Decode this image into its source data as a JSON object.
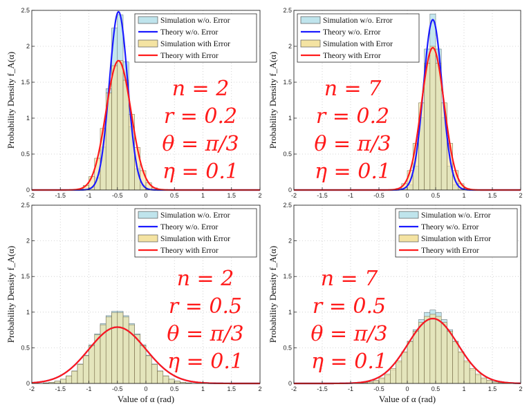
{
  "chart_data": [
    {
      "type": "bar",
      "title": "",
      "xlabel": "",
      "ylabel": "Probability Density f_A(α)",
      "xlim": [
        -2,
        2
      ],
      "ylim": [
        0,
        2.5
      ],
      "xticks": [
        "-2",
        "-1.5",
        "-1",
        "-0.5",
        "0",
        "0.5",
        "1",
        "1.5",
        "2"
      ],
      "yticks": [
        "0",
        "0.5",
        "1",
        "1.5",
        "2",
        "2.5"
      ],
      "grid": true,
      "legend_position": "top-right",
      "params": [
        "n = 2",
        "r = 0.2",
        "θ = π/3",
        "η = 0.1"
      ],
      "series": [
        {
          "name": "Simulation w/o. Error",
          "kind": "histogram",
          "mean": -0.48,
          "peak": 2.48,
          "sigma": 0.16,
          "color": "#bfe4ec"
        },
        {
          "name": "Theory w/o. Error",
          "kind": "curve",
          "mean": -0.48,
          "peak": 2.48,
          "sigma": 0.16,
          "color": "#1a1aff"
        },
        {
          "name": "Simulation with Error",
          "kind": "histogram",
          "mean": -0.48,
          "peak": 1.82,
          "sigma": 0.22,
          "color": "#f4e3a2"
        },
        {
          "name": "Theory with Error",
          "kind": "curve",
          "mean": -0.48,
          "peak": 1.8,
          "sigma": 0.22,
          "color": "#ff1a1a"
        }
      ]
    },
    {
      "type": "bar",
      "title": "",
      "xlabel": "",
      "ylabel": "Probability Density f_A(α)",
      "xlim": [
        -2,
        2
      ],
      "ylim": [
        0,
        2.5
      ],
      "xticks": [
        "-2",
        "-1.5",
        "-1",
        "-0.5",
        "0",
        "0.5",
        "1",
        "1.5",
        "2"
      ],
      "yticks": [
        "0",
        "0.5",
        "1",
        "1.5",
        "2",
        "2.5"
      ],
      "grid": true,
      "legend_position": "top-left",
      "params": [
        "n = 7",
        "r = 0.2",
        "θ = π/3",
        "η = 0.1"
      ],
      "series": [
        {
          "name": "Simulation w/o. Error",
          "kind": "histogram",
          "mean": 0.45,
          "peak": 2.45,
          "sigma": 0.15,
          "color": "#bfe4ec"
        },
        {
          "name": "Theory w/o. Error",
          "kind": "curve",
          "mean": 0.45,
          "peak": 2.37,
          "sigma": 0.165,
          "color": "#1a1aff"
        },
        {
          "name": "Simulation with Error",
          "kind": "histogram",
          "mean": 0.45,
          "peak": 2.0,
          "sigma": 0.2,
          "color": "#f4e3a2"
        },
        {
          "name": "Theory with Error",
          "kind": "curve",
          "mean": 0.45,
          "peak": 1.98,
          "sigma": 0.2,
          "color": "#ff1a1a"
        }
      ]
    },
    {
      "type": "bar",
      "title": "",
      "xlabel": "Value of α (rad)",
      "ylabel": "Probability Density f_A(α)",
      "xlim": [
        -2,
        2
      ],
      "ylim": [
        0,
        2.5
      ],
      "xticks": [
        "-2",
        "-1.5",
        "-1",
        "-0.5",
        "0",
        "0.5",
        "1",
        "1.5",
        "2"
      ],
      "yticks": [
        "0",
        "0.5",
        "1",
        "1.5",
        "2",
        "2.5"
      ],
      "grid": true,
      "legend_position": "top-right",
      "params": [
        "n = 2",
        "r = 0.5",
        "θ = π/3",
        "η = 0.1"
      ],
      "series": [
        {
          "name": "Simulation w/o. Error",
          "kind": "histogram",
          "mean": -0.5,
          "peak": 1.02,
          "sigma": 0.4,
          "color": "#bfe4ec"
        },
        {
          "name": "Theory w/o. Error",
          "kind": "curve",
          "mean": -0.5,
          "peak": 0.79,
          "sigma": 0.5,
          "color": "#1a1aff"
        },
        {
          "name": "Simulation with Error",
          "kind": "histogram",
          "mean": -0.5,
          "peak": 1.0,
          "sigma": 0.4,
          "color": "#f4e3a2"
        },
        {
          "name": "Theory with Error",
          "kind": "curve",
          "mean": -0.5,
          "peak": 0.79,
          "sigma": 0.5,
          "color": "#ff1a1a"
        }
      ]
    },
    {
      "type": "bar",
      "title": "",
      "xlabel": "Value of α (rad)",
      "ylabel": "Probability Density f_A(α)",
      "xlim": [
        -2,
        2
      ],
      "ylim": [
        0,
        2.5
      ],
      "xticks": [
        "-2",
        "-1.5",
        "-1",
        "-0.5",
        "0",
        "0.5",
        "1",
        "1.5",
        "2"
      ],
      "yticks": [
        "0",
        "0.5",
        "1",
        "1.5",
        "2",
        "2.5"
      ],
      "grid": true,
      "legend_position": "top-right",
      "params": [
        "n = 7",
        "r = 0.5",
        "θ = π/3",
        "η = 0.1"
      ],
      "series": [
        {
          "name": "Simulation w/o. Error",
          "kind": "histogram",
          "mean": 0.45,
          "peak": 1.03,
          "sigma": 0.38,
          "color": "#bfe4ec"
        },
        {
          "name": "Theory w/o. Error",
          "kind": "curve",
          "mean": 0.45,
          "peak": 0.91,
          "sigma": 0.44,
          "color": "#1a1aff"
        },
        {
          "name": "Simulation with Error",
          "kind": "histogram",
          "mean": 0.45,
          "peak": 0.97,
          "sigma": 0.4,
          "color": "#f4e3a2"
        },
        {
          "name": "Theory with Error",
          "kind": "curve",
          "mean": 0.45,
          "peak": 0.91,
          "sigma": 0.44,
          "color": "#ff1a1a"
        }
      ]
    }
  ]
}
